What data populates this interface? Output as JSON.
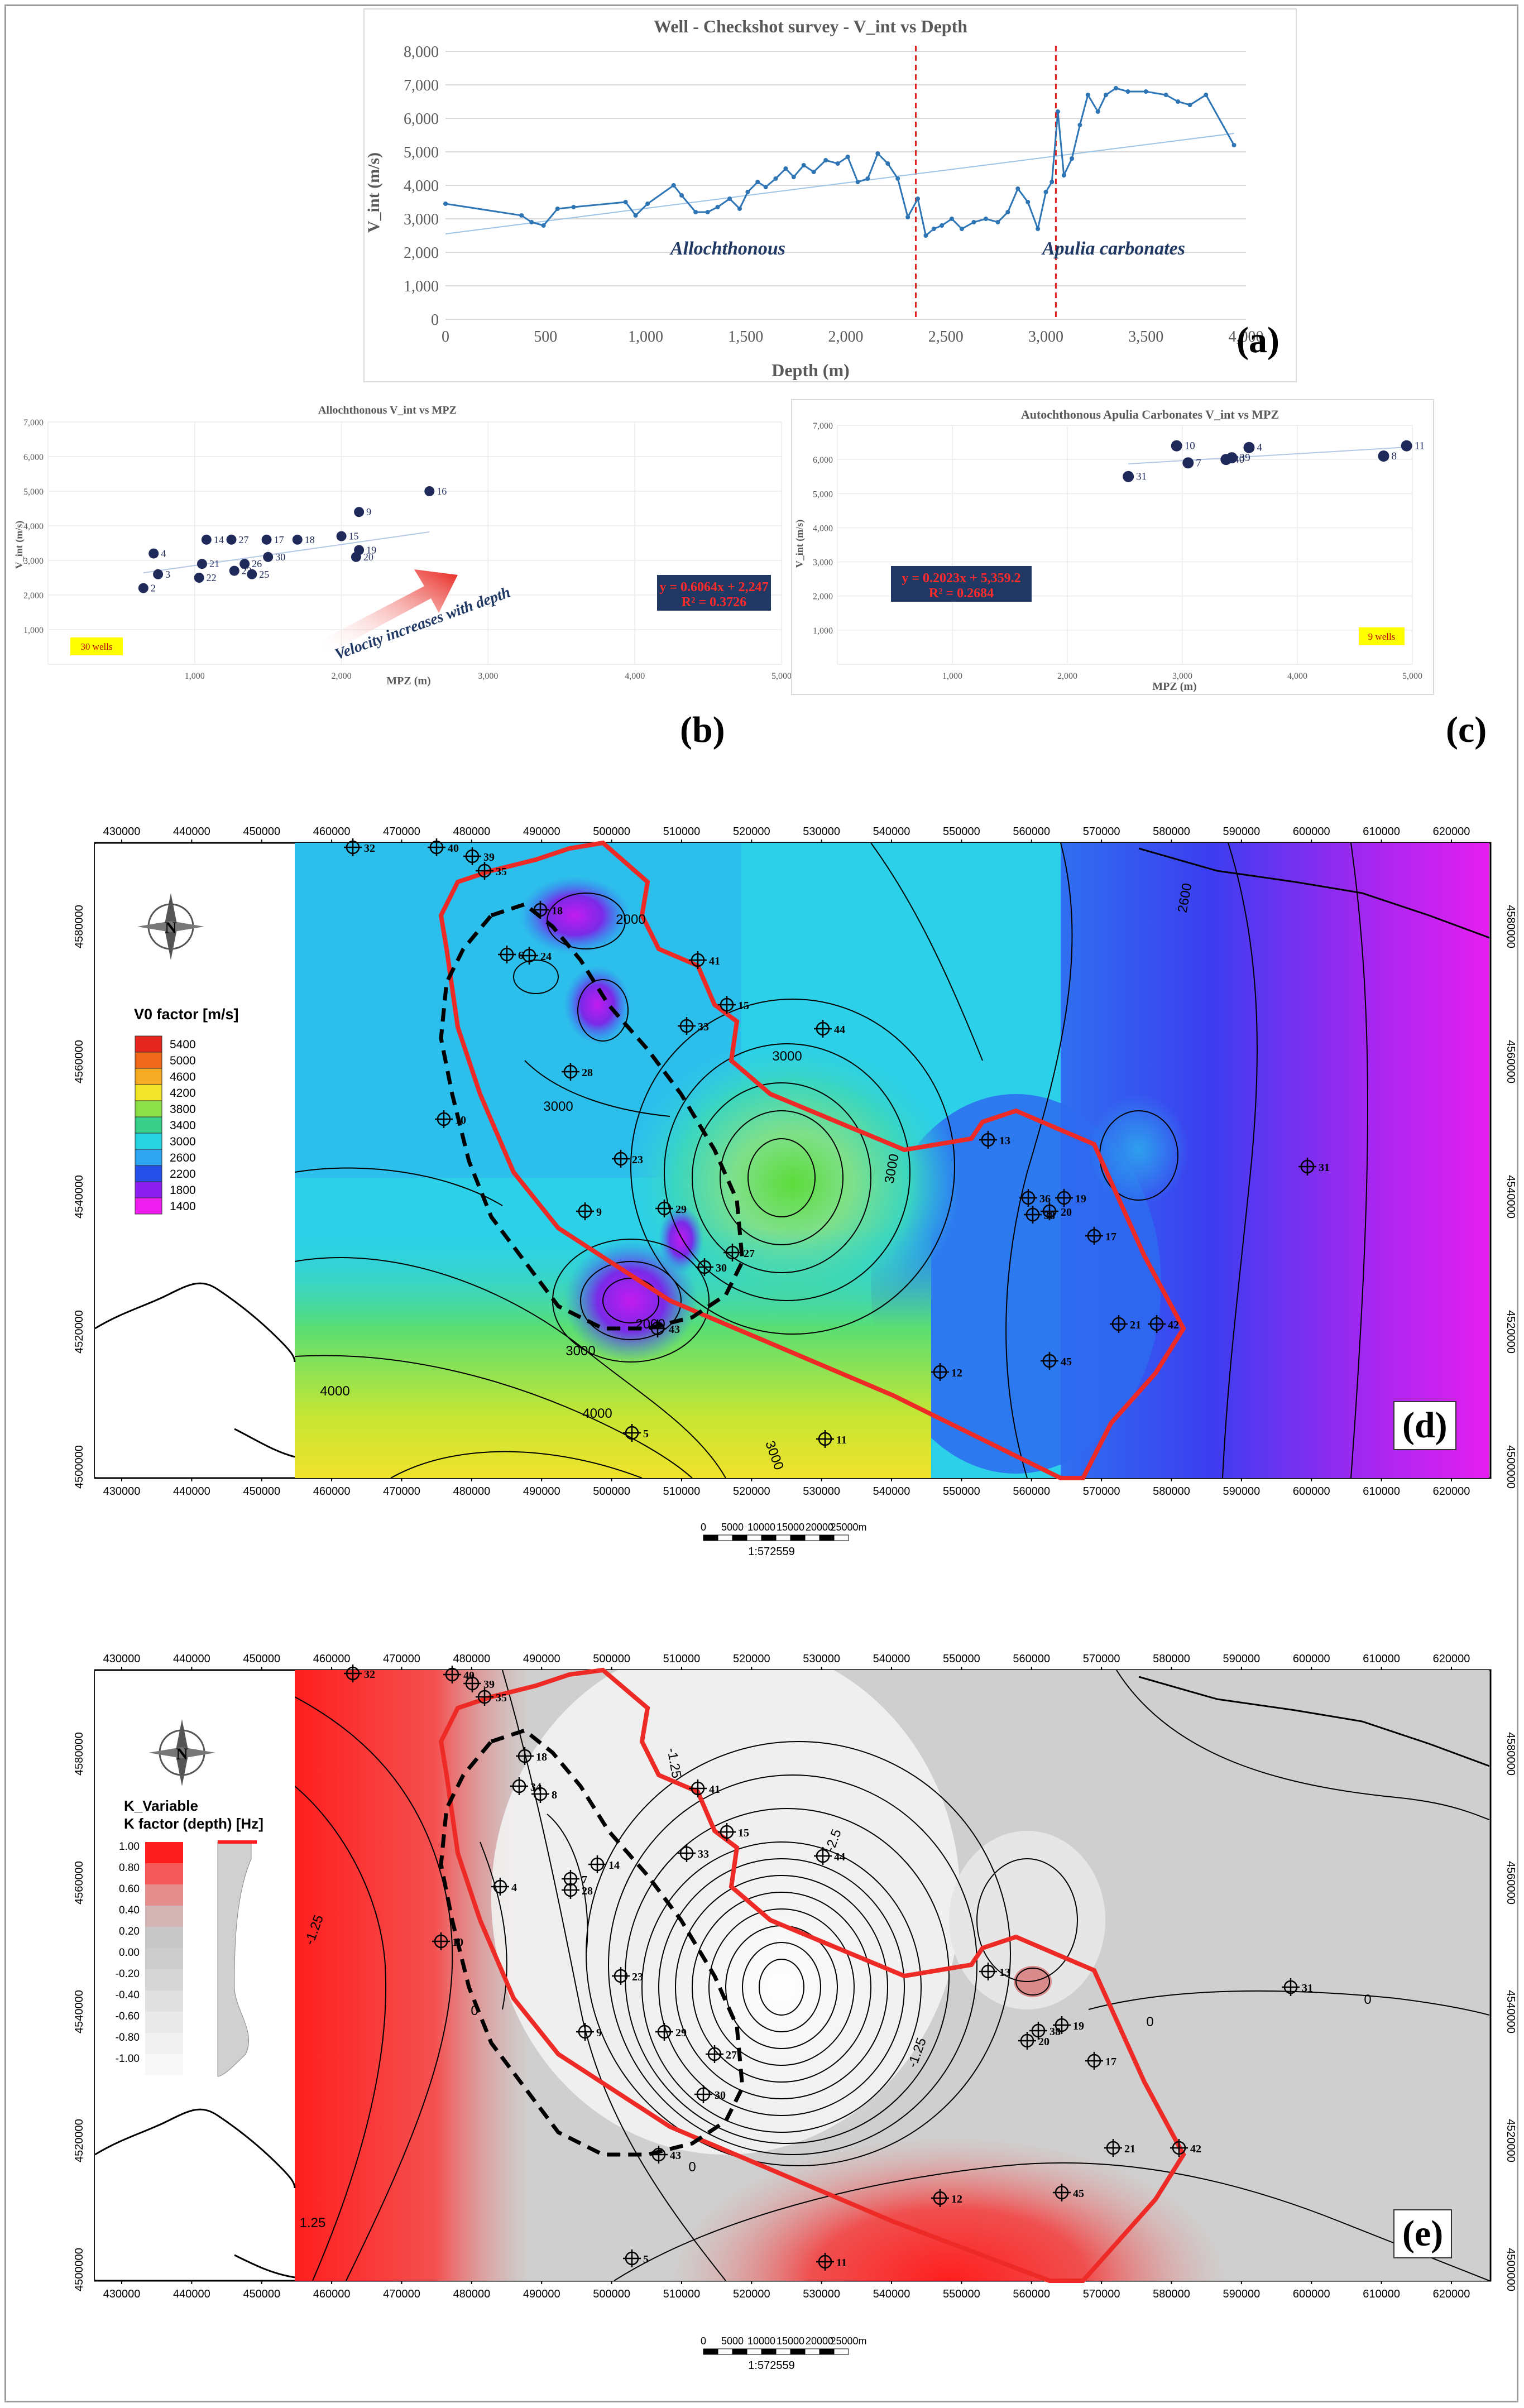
{
  "panels": [
    "(a)",
    "(b)",
    "(c)",
    "(d)",
    "(e)"
  ],
  "chart_data": [
    {
      "type": "line",
      "title": "Well - Checkshot survey - V_int vs Depth",
      "xlabel": "Depth (m)",
      "ylabel": "V_int (m/s)",
      "xlim": [
        0,
        4000
      ],
      "ylim": [
        0,
        8000
      ],
      "xticks": [
        "0",
        "500",
        "1,000",
        "1,500",
        "2,000",
        "2,500",
        "3,000",
        "3,500",
        "4,000"
      ],
      "yticks": [
        "0",
        "1,000",
        "2,000",
        "3,000",
        "4,000",
        "5,000",
        "6,000",
        "7,000",
        "8,000"
      ],
      "x": [
        0,
        380,
        430,
        490,
        560,
        640,
        900,
        950,
        1010,
        1140,
        1180,
        1250,
        1310,
        1360,
        1420,
        1470,
        1510,
        1560,
        1600,
        1650,
        1700,
        1740,
        1790,
        1840,
        1900,
        1960,
        2010,
        2060,
        2110,
        2160,
        2210,
        2260,
        2310,
        2360,
        2400,
        2440,
        2480,
        2530,
        2580,
        2640,
        2700,
        2760,
        2810,
        2860,
        2910,
        2960,
        3000,
        3030,
        3060,
        3090,
        3130,
        3170,
        3210,
        3260,
        3300,
        3350,
        3410,
        3500,
        3600,
        3660,
        3720,
        3800,
        3940
      ],
      "y": [
        3450,
        3100,
        2900,
        2800,
        3300,
        3350,
        3500,
        3100,
        3450,
        4000,
        3700,
        3200,
        3200,
        3350,
        3600,
        3300,
        3800,
        4100,
        3950,
        4200,
        4500,
        4250,
        4600,
        4400,
        4750,
        4650,
        4850,
        4100,
        4200,
        4950,
        4650,
        4200,
        3050,
        3600,
        2500,
        2700,
        2800,
        3000,
        2700,
        2900,
        3000,
        2900,
        3200,
        3900,
        3500,
        2700,
        3800,
        4100,
        6200,
        4300,
        4800,
        5800,
        6700,
        6200,
        6700,
        6900,
        6800,
        6800,
        6700,
        6500,
        6400,
        6700,
        5200
      ],
      "trendline": {
        "x": [
          0,
          3940
        ],
        "y": [
          2550,
          5550
        ]
      },
      "boundaries_x": [
        2350,
        3050
      ],
      "annotations": [
        "Allochthonous",
        "Apulia carbonates"
      ]
    },
    {
      "type": "scatter",
      "title": "Allochthonous V_int vs MPZ",
      "xlabel": "MPZ (m)",
      "ylabel": "V_int (m/s)",
      "xlim": [
        0,
        5000
      ],
      "ylim": [
        0,
        7000
      ],
      "xticks": [
        "1,000",
        "2,000",
        "3,000",
        "4,000",
        "5,000"
      ],
      "yticks": [
        "1,000",
        "2,000",
        "3,000",
        "4,000",
        "5,000",
        "6,000",
        "7,000"
      ],
      "labels": [
        "2",
        "3",
        "4",
        "22",
        "21",
        "14",
        "27",
        "17",
        "18",
        "30",
        "23",
        "26",
        "25",
        "15",
        "9",
        "20",
        "19",
        "16"
      ],
      "x": [
        650,
        750,
        720,
        1030,
        1050,
        1080,
        1250,
        1490,
        1700,
        1500,
        1270,
        1340,
        1390,
        2000,
        2120,
        2100,
        2120,
        2600
      ],
      "y": [
        2200,
        2600,
        3200,
        2500,
        2900,
        3600,
        3600,
        3600,
        3600,
        3100,
        2700,
        2900,
        2600,
        3700,
        4400,
        3100,
        3300,
        5000
      ],
      "equation": "y = 0.6064x + 2,247",
      "r2": "R² = 0.3726",
      "note": "30 wells",
      "arrow_text": "Velocity increases with depth"
    },
    {
      "type": "scatter",
      "title": "Autochthonous Apulia Carbonates V_int vs MPZ",
      "xlabel": "MPZ (m)",
      "ylabel": "V_int (m/s)",
      "xlim": [
        0,
        5000
      ],
      "ylim": [
        0,
        7000
      ],
      "xticks": [
        "1,000",
        "2,000",
        "3,000",
        "4,000",
        "5,000"
      ],
      "yticks": [
        "1,000",
        "2,000",
        "3,000",
        "4,000",
        "5,000",
        "6,000",
        "7,000"
      ],
      "labels": [
        "31",
        "7",
        "10",
        "40",
        "39",
        "4",
        "8",
        "11"
      ],
      "x": [
        2530,
        3050,
        2950,
        3380,
        3430,
        3580,
        4750,
        4950
      ],
      "y": [
        5500,
        5900,
        6400,
        6000,
        6050,
        6350,
        6100,
        6400
      ],
      "equation": "y = 0.2023x + 5,359.2",
      "r2": "R² = 0.2684",
      "note": "9 wells"
    },
    {
      "type": "heatmap",
      "legend_title": "V0 factor [m/s]",
      "legend_values": [
        "5400",
        "5000",
        "4600",
        "4200",
        "3800",
        "3400",
        "3000",
        "2600",
        "2200",
        "1800",
        "1400"
      ],
      "legend_colors": [
        "#e4261e",
        "#f06a1e",
        "#f5ac24",
        "#f2e62a",
        "#8ee04a",
        "#38d08a",
        "#26d3e0",
        "#2fa6f0",
        "#2450e8",
        "#8a1ff0",
        "#f01ff0"
      ],
      "contour_labels": [
        "2000",
        "3000",
        "3000",
        "4000",
        "4000",
        "3000",
        "2000",
        "3000",
        "3000",
        "2600"
      ],
      "x_ticks": [
        "430000",
        "440000",
        "450000",
        "460000",
        "470000",
        "480000",
        "490000",
        "500000",
        "510000",
        "520000",
        "530000",
        "540000",
        "550000",
        "560000",
        "570000",
        "580000",
        "590000",
        "600000",
        "610000",
        "620000"
      ],
      "y_ticks": [
        "4580000",
        "4560000",
        "4540000",
        "4520000",
        "4500000"
      ],
      "scale_labels": [
        "0",
        "5000",
        "10000",
        "15000",
        "20000",
        "25000m"
      ],
      "scale_text": "1:572559",
      "wells": [
        "32",
        "40",
        "39",
        "35",
        "18",
        "6",
        "24",
        "41",
        "15",
        "33",
        "44",
        "28",
        "10",
        "23",
        "9",
        "13",
        "36",
        "19",
        "38",
        "20",
        "17",
        "27",
        "30",
        "29",
        "43",
        "12",
        "21",
        "42",
        "45",
        "31",
        "11",
        "5"
      ]
    },
    {
      "type": "heatmap",
      "legend_title": "K_Variable",
      "legend_subtitle": "K factor (depth) [Hz]",
      "legend_values": [
        "1.00",
        "0.80",
        "0.60",
        "0.40",
        "0.20",
        "0.00",
        "-0.20",
        "-0.40",
        "-0.60",
        "-0.80",
        "-1.00"
      ],
      "legend_colors": [
        "#ff1e1e",
        "#f45a5a",
        "#e58e8e",
        "#d4b4b4",
        "#c8c8c8",
        "#cdcdcd",
        "#d6d6d6",
        "#e0e0e0",
        "#e9e9e9",
        "#f1f1f1",
        "#f8f8f8"
      ],
      "contour_labels": [
        "-1.25",
        "-1.25",
        "-2.5",
        "-1.25",
        "0",
        "0",
        "0",
        "0",
        "1.25"
      ],
      "x_ticks": [
        "430000",
        "440000",
        "450000",
        "460000",
        "470000",
        "480000",
        "490000",
        "500000",
        "510000",
        "520000",
        "530000",
        "540000",
        "550000",
        "560000",
        "570000",
        "580000",
        "590000",
        "600000",
        "610000",
        "620000"
      ],
      "y_ticks": [
        "4580000",
        "4560000",
        "4540000",
        "4520000",
        "4500000"
      ],
      "scale_labels": [
        "0",
        "5000",
        "10000",
        "15000",
        "20000",
        "25000m"
      ],
      "scale_text": "1:572559",
      "wells": [
        "32",
        "40",
        "39",
        "35",
        "18",
        "34",
        "8",
        "41",
        "15",
        "33",
        "4",
        "7",
        "28",
        "44",
        "14",
        "10",
        "23",
        "13",
        "9",
        "29",
        "27",
        "38",
        "19",
        "20",
        "17",
        "30",
        "43",
        "21",
        "42",
        "12",
        "45",
        "31",
        "11",
        "5"
      ]
    }
  ]
}
